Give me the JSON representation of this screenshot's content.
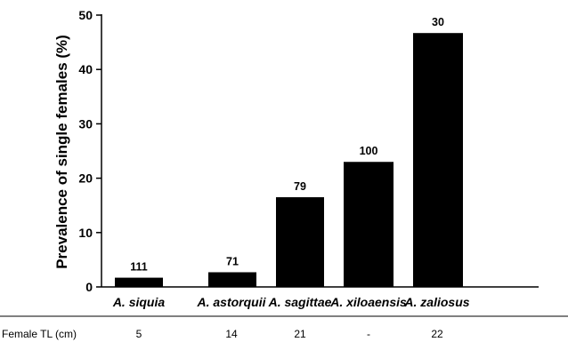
{
  "chart_data": {
    "type": "bar",
    "categories": [
      "A. siquia",
      "A. astorquii",
      "A. sagittae",
      "A. xiloaensis",
      "A. zaliosus"
    ],
    "values": [
      1.7,
      2.7,
      16.5,
      23.0,
      46.7
    ],
    "data_labels": [
      "111",
      "71",
      "79",
      "100",
      "30"
    ],
    "ylabel": "Prevalence of single females (%)",
    "ylim": [
      0,
      50
    ],
    "yticks": [
      0,
      10,
      20,
      30,
      40,
      50
    ],
    "bar_color": "#000000",
    "grid": false,
    "legend": "none"
  },
  "table_row": {
    "label": "Female TL (cm)",
    "values": [
      "5",
      "14",
      "21",
      "-",
      "22"
    ]
  }
}
